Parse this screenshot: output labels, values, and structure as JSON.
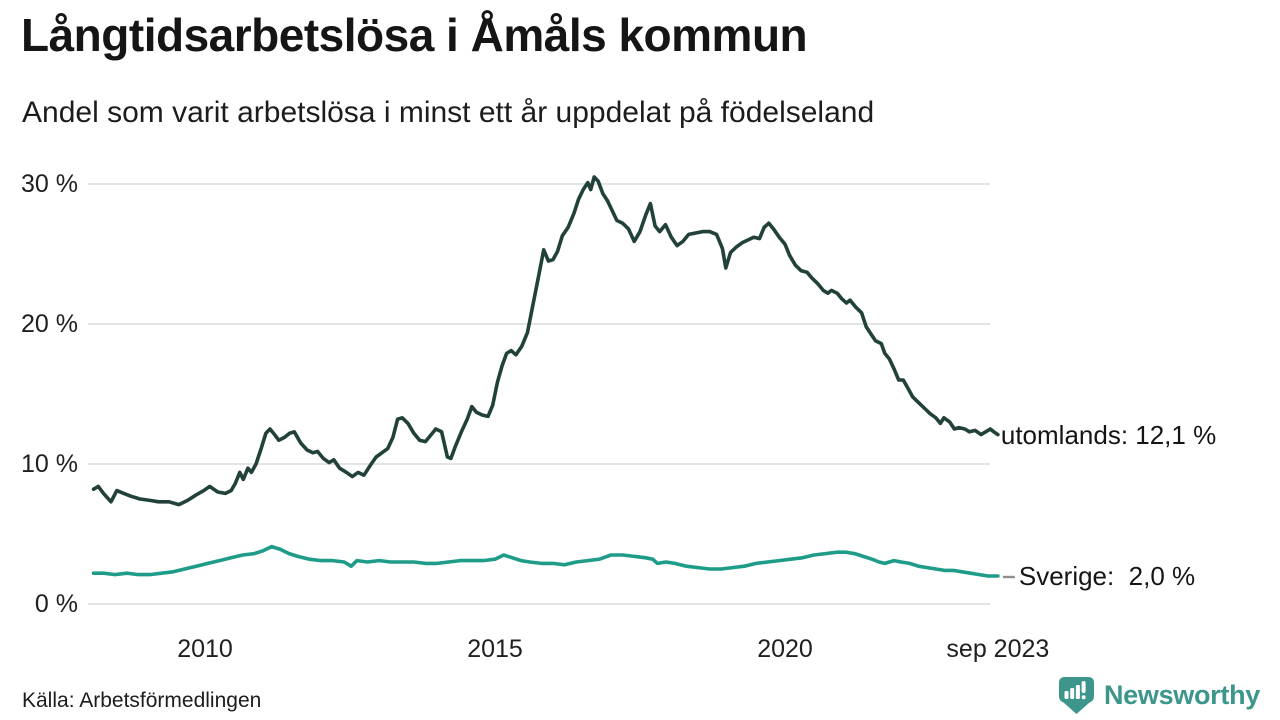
{
  "header": {
    "title": "Långtidsarbetslösa i Åmåls kommun",
    "subtitle": "Andel som varit arbetslösa i minst ett år uppdelat på födelseland"
  },
  "source": {
    "label": "Källa: Arbetsförmedlingen"
  },
  "branding": {
    "logo_text": "Newsworthy",
    "brand_color": "#3C968C"
  },
  "chart_data": {
    "type": "line",
    "title": "Långtidsarbetslösa i Åmåls kommun",
    "subtitle": "Andel som varit arbetslösa i minst ett år uppdelat på födelseland",
    "grid": true,
    "grid_color": "#E4E4E4",
    "legend_position": "end-of-line-labels",
    "x_axis": {
      "range": [
        2008.0,
        2023.75
      ],
      "ticks": [
        {
          "label": "2010",
          "year": 2010
        },
        {
          "label": "2015",
          "year": 2015
        },
        {
          "label": "2020",
          "year": 2020
        },
        {
          "label": "sep 2023",
          "year": 2023.67
        }
      ]
    },
    "y_axis": {
      "range": [
        0,
        32
      ],
      "unit": "%",
      "ticks": [
        {
          "label": "30 %",
          "value": 30
        },
        {
          "label": "20 %",
          "value": 20
        },
        {
          "label": "10 %",
          "value": 10
        },
        {
          "label": "0 %",
          "value": 0
        }
      ]
    },
    "series": [
      {
        "name": "utomlands",
        "color": "#21413A",
        "end_label": "utomlands: 12,1 %",
        "end_value": 12.1,
        "leader_dash": false,
        "points": [
          [
            2008.08,
            8.2
          ],
          [
            2008.16,
            8.4
          ],
          [
            2008.25,
            7.9
          ],
          [
            2008.38,
            7.3
          ],
          [
            2008.48,
            8.1
          ],
          [
            2008.6,
            7.9
          ],
          [
            2008.72,
            7.7
          ],
          [
            2008.88,
            7.5
          ],
          [
            2009.05,
            7.4
          ],
          [
            2009.2,
            7.3
          ],
          [
            2009.38,
            7.3
          ],
          [
            2009.55,
            7.1
          ],
          [
            2009.7,
            7.4
          ],
          [
            2009.85,
            7.8
          ],
          [
            2009.98,
            8.1
          ],
          [
            2010.08,
            8.4
          ],
          [
            2010.22,
            8.0
          ],
          [
            2010.35,
            7.9
          ],
          [
            2010.45,
            8.1
          ],
          [
            2010.52,
            8.6
          ],
          [
            2010.6,
            9.4
          ],
          [
            2010.66,
            8.9
          ],
          [
            2010.74,
            9.7
          ],
          [
            2010.8,
            9.4
          ],
          [
            2010.88,
            10.0
          ],
          [
            2010.96,
            11.0
          ],
          [
            2011.05,
            12.2
          ],
          [
            2011.12,
            12.5
          ],
          [
            2011.2,
            12.1
          ],
          [
            2011.27,
            11.7
          ],
          [
            2011.37,
            11.9
          ],
          [
            2011.46,
            12.2
          ],
          [
            2011.54,
            12.3
          ],
          [
            2011.65,
            11.5
          ],
          [
            2011.76,
            11.0
          ],
          [
            2011.86,
            10.8
          ],
          [
            2011.94,
            10.9
          ],
          [
            2012.04,
            10.4
          ],
          [
            2012.14,
            10.1
          ],
          [
            2012.22,
            10.3
          ],
          [
            2012.32,
            9.7
          ],
          [
            2012.44,
            9.4
          ],
          [
            2012.54,
            9.1
          ],
          [
            2012.64,
            9.4
          ],
          [
            2012.74,
            9.2
          ],
          [
            2012.85,
            9.9
          ],
          [
            2012.95,
            10.5
          ],
          [
            2013.05,
            10.8
          ],
          [
            2013.15,
            11.1
          ],
          [
            2013.24,
            11.9
          ],
          [
            2013.32,
            13.2
          ],
          [
            2013.4,
            13.3
          ],
          [
            2013.5,
            12.9
          ],
          [
            2013.6,
            12.2
          ],
          [
            2013.7,
            11.7
          ],
          [
            2013.8,
            11.6
          ],
          [
            2013.9,
            12.1
          ],
          [
            2013.98,
            12.5
          ],
          [
            2014.08,
            12.3
          ],
          [
            2014.18,
            10.5
          ],
          [
            2014.24,
            10.4
          ],
          [
            2014.32,
            11.3
          ],
          [
            2014.42,
            12.3
          ],
          [
            2014.52,
            13.2
          ],
          [
            2014.6,
            14.1
          ],
          [
            2014.68,
            13.7
          ],
          [
            2014.78,
            13.5
          ],
          [
            2014.88,
            13.4
          ],
          [
            2014.96,
            14.2
          ],
          [
            2015.04,
            15.8
          ],
          [
            2015.12,
            17.0
          ],
          [
            2015.2,
            17.9
          ],
          [
            2015.28,
            18.1
          ],
          [
            2015.36,
            17.8
          ],
          [
            2015.46,
            18.4
          ],
          [
            2015.56,
            19.4
          ],
          [
            2015.66,
            21.5
          ],
          [
            2015.76,
            23.6
          ],
          [
            2015.84,
            25.3
          ],
          [
            2015.92,
            24.5
          ],
          [
            2016.0,
            24.6
          ],
          [
            2016.08,
            25.2
          ],
          [
            2016.16,
            26.3
          ],
          [
            2016.26,
            26.9
          ],
          [
            2016.36,
            27.9
          ],
          [
            2016.44,
            28.9
          ],
          [
            2016.52,
            29.6
          ],
          [
            2016.6,
            30.1
          ],
          [
            2016.65,
            29.6
          ],
          [
            2016.71,
            30.5
          ],
          [
            2016.78,
            30.2
          ],
          [
            2016.86,
            29.3
          ],
          [
            2016.94,
            28.8
          ],
          [
            2017.02,
            28.1
          ],
          [
            2017.1,
            27.4
          ],
          [
            2017.2,
            27.2
          ],
          [
            2017.3,
            26.8
          ],
          [
            2017.4,
            25.9
          ],
          [
            2017.5,
            26.6
          ],
          [
            2017.6,
            27.8
          ],
          [
            2017.68,
            28.6
          ],
          [
            2017.76,
            27.0
          ],
          [
            2017.84,
            26.6
          ],
          [
            2017.94,
            27.1
          ],
          [
            2018.04,
            26.2
          ],
          [
            2018.14,
            25.6
          ],
          [
            2018.24,
            25.9
          ],
          [
            2018.34,
            26.4
          ],
          [
            2018.46,
            26.5
          ],
          [
            2018.58,
            26.6
          ],
          [
            2018.7,
            26.6
          ],
          [
            2018.82,
            26.4
          ],
          [
            2018.92,
            25.4
          ],
          [
            2018.98,
            24.0
          ],
          [
            2019.06,
            25.1
          ],
          [
            2019.16,
            25.5
          ],
          [
            2019.26,
            25.8
          ],
          [
            2019.36,
            26.0
          ],
          [
            2019.46,
            26.2
          ],
          [
            2019.56,
            26.1
          ],
          [
            2019.64,
            26.9
          ],
          [
            2019.72,
            27.2
          ],
          [
            2019.8,
            26.8
          ],
          [
            2019.9,
            26.2
          ],
          [
            2020.0,
            25.7
          ],
          [
            2020.08,
            24.9
          ],
          [
            2020.18,
            24.2
          ],
          [
            2020.28,
            23.8
          ],
          [
            2020.38,
            23.7
          ],
          [
            2020.46,
            23.3
          ],
          [
            2020.56,
            22.9
          ],
          [
            2020.66,
            22.4
          ],
          [
            2020.74,
            22.2
          ],
          [
            2020.8,
            22.4
          ],
          [
            2020.9,
            22.2
          ],
          [
            2020.98,
            21.8
          ],
          [
            2021.06,
            21.5
          ],
          [
            2021.12,
            21.7
          ],
          [
            2021.22,
            21.2
          ],
          [
            2021.32,
            20.8
          ],
          [
            2021.4,
            19.8
          ],
          [
            2021.48,
            19.3
          ],
          [
            2021.56,
            18.8
          ],
          [
            2021.66,
            18.6
          ],
          [
            2021.72,
            17.9
          ],
          [
            2021.8,
            17.5
          ],
          [
            2021.88,
            16.8
          ],
          [
            2021.96,
            16.0
          ],
          [
            2022.04,
            16.0
          ],
          [
            2022.12,
            15.4
          ],
          [
            2022.2,
            14.8
          ],
          [
            2022.3,
            14.4
          ],
          [
            2022.4,
            14.0
          ],
          [
            2022.5,
            13.6
          ],
          [
            2022.6,
            13.3
          ],
          [
            2022.68,
            12.9
          ],
          [
            2022.74,
            13.3
          ],
          [
            2022.84,
            13.0
          ],
          [
            2022.92,
            12.5
          ],
          [
            2023.0,
            12.6
          ],
          [
            2023.1,
            12.5
          ],
          [
            2023.18,
            12.3
          ],
          [
            2023.28,
            12.4
          ],
          [
            2023.38,
            12.1
          ],
          [
            2023.46,
            12.3
          ],
          [
            2023.54,
            12.5
          ],
          [
            2023.6,
            12.3
          ],
          [
            2023.67,
            12.1
          ]
        ]
      },
      {
        "name": "Sverige",
        "color": "#1E9C89",
        "end_label": "Sverige:  2,0 %",
        "end_value": 2.0,
        "leader_dash": true,
        "points": [
          [
            2008.08,
            2.2
          ],
          [
            2008.25,
            2.2
          ],
          [
            2008.45,
            2.1
          ],
          [
            2008.65,
            2.2
          ],
          [
            2008.85,
            2.1
          ],
          [
            2009.05,
            2.1
          ],
          [
            2009.25,
            2.2
          ],
          [
            2009.45,
            2.3
          ],
          [
            2009.65,
            2.5
          ],
          [
            2009.85,
            2.7
          ],
          [
            2010.05,
            2.9
          ],
          [
            2010.25,
            3.1
          ],
          [
            2010.45,
            3.3
          ],
          [
            2010.65,
            3.5
          ],
          [
            2010.85,
            3.6
          ],
          [
            2011.0,
            3.8
          ],
          [
            2011.15,
            4.1
          ],
          [
            2011.3,
            3.9
          ],
          [
            2011.45,
            3.6
          ],
          [
            2011.6,
            3.4
          ],
          [
            2011.8,
            3.2
          ],
          [
            2012.0,
            3.1
          ],
          [
            2012.2,
            3.1
          ],
          [
            2012.4,
            3.0
          ],
          [
            2012.52,
            2.7
          ],
          [
            2012.62,
            3.1
          ],
          [
            2012.8,
            3.0
          ],
          [
            2013.0,
            3.1
          ],
          [
            2013.2,
            3.0
          ],
          [
            2013.4,
            3.0
          ],
          [
            2013.6,
            3.0
          ],
          [
            2013.8,
            2.9
          ],
          [
            2014.0,
            2.9
          ],
          [
            2014.2,
            3.0
          ],
          [
            2014.4,
            3.1
          ],
          [
            2014.6,
            3.1
          ],
          [
            2014.8,
            3.1
          ],
          [
            2015.0,
            3.2
          ],
          [
            2015.15,
            3.5
          ],
          [
            2015.3,
            3.3
          ],
          [
            2015.45,
            3.1
          ],
          [
            2015.6,
            3.0
          ],
          [
            2015.8,
            2.9
          ],
          [
            2016.0,
            2.9
          ],
          [
            2016.2,
            2.8
          ],
          [
            2016.4,
            3.0
          ],
          [
            2016.6,
            3.1
          ],
          [
            2016.8,
            3.2
          ],
          [
            2017.0,
            3.5
          ],
          [
            2017.2,
            3.5
          ],
          [
            2017.4,
            3.4
          ],
          [
            2017.6,
            3.3
          ],
          [
            2017.72,
            3.2
          ],
          [
            2017.8,
            2.9
          ],
          [
            2017.95,
            3.0
          ],
          [
            2018.1,
            2.9
          ],
          [
            2018.3,
            2.7
          ],
          [
            2018.5,
            2.6
          ],
          [
            2018.7,
            2.5
          ],
          [
            2018.9,
            2.5
          ],
          [
            2019.1,
            2.6
          ],
          [
            2019.3,
            2.7
          ],
          [
            2019.5,
            2.9
          ],
          [
            2019.7,
            3.0
          ],
          [
            2019.9,
            3.1
          ],
          [
            2020.1,
            3.2
          ],
          [
            2020.3,
            3.3
          ],
          [
            2020.5,
            3.5
          ],
          [
            2020.7,
            3.6
          ],
          [
            2020.9,
            3.7
          ],
          [
            2021.05,
            3.7
          ],
          [
            2021.2,
            3.6
          ],
          [
            2021.35,
            3.4
          ],
          [
            2021.5,
            3.2
          ],
          [
            2021.62,
            3.0
          ],
          [
            2021.72,
            2.9
          ],
          [
            2021.88,
            3.1
          ],
          [
            2022.0,
            3.0
          ],
          [
            2022.15,
            2.9
          ],
          [
            2022.3,
            2.7
          ],
          [
            2022.45,
            2.6
          ],
          [
            2022.6,
            2.5
          ],
          [
            2022.75,
            2.4
          ],
          [
            2022.9,
            2.4
          ],
          [
            2023.05,
            2.3
          ],
          [
            2023.2,
            2.2
          ],
          [
            2023.35,
            2.1
          ],
          [
            2023.5,
            2.0
          ],
          [
            2023.67,
            2.0
          ]
        ]
      }
    ]
  }
}
